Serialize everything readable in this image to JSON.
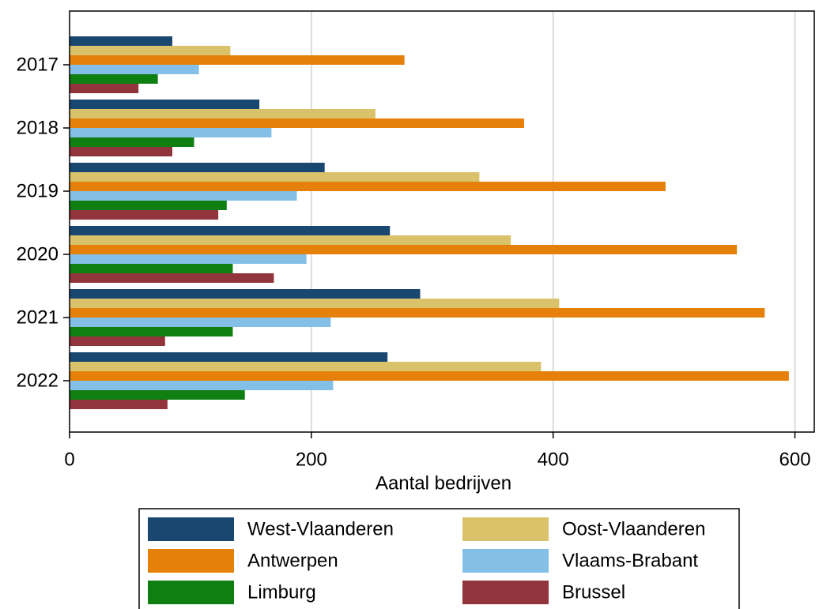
{
  "chart_data": {
    "type": "barh",
    "xlabel": "Aantal bedrijven",
    "categories": [
      "2017",
      "2018",
      "2019",
      "2020",
      "2021",
      "2022"
    ],
    "series": [
      {
        "name": "West-Vlaanderen",
        "color": "#1a476f",
        "values": [
          85,
          157,
          211,
          265,
          290,
          263
        ]
      },
      {
        "name": "Oost-Vlaanderen",
        "color": "#d9c26a",
        "values": [
          133,
          253,
          339,
          365,
          405,
          390
        ]
      },
      {
        "name": "Antwerpen",
        "color": "#e5810a",
        "values": [
          277,
          376,
          493,
          552,
          575,
          595
        ]
      },
      {
        "name": "Vlaams-Brabant",
        "color": "#84bfe8",
        "values": [
          107,
          167,
          188,
          196,
          216,
          218
        ]
      },
      {
        "name": "Limburg",
        "color": "#0f7f12",
        "values": [
          73,
          103,
          130,
          135,
          135,
          145
        ]
      },
      {
        "name": "Brussel",
        "color": "#91343c",
        "values": [
          57,
          85,
          123,
          169,
          79,
          81
        ]
      }
    ],
    "xlim": [
      0,
      616
    ],
    "xticks": [
      0,
      200,
      400,
      600
    ],
    "grid": true,
    "legend": "bottom"
  }
}
